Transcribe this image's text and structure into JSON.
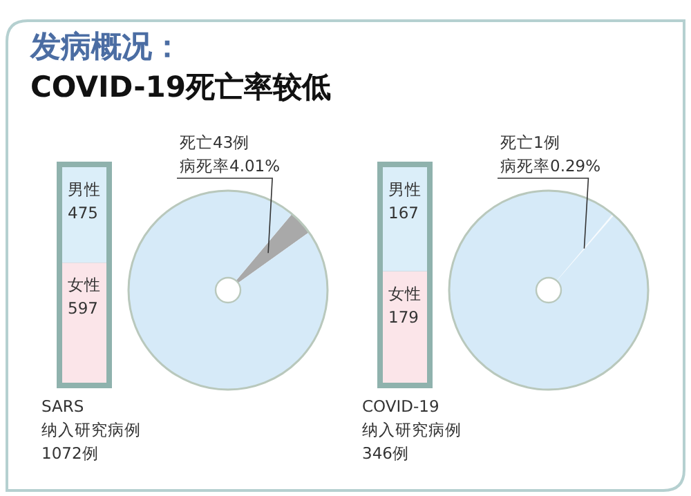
{
  "chart_data": [
    {
      "type": "bar",
      "title": "发病概况：",
      "subtitle": "COVID-19死亡率较低",
      "stacked": true,
      "categories": [
        null
      ],
      "data_labels": true,
      "series": [
        {
          "name": "女性",
          "color": "#fbe5e9",
          "values": [
            597
          ]
        },
        {
          "name": "男性",
          "color": "#dbeef9",
          "values": [
            475
          ]
        }
      ],
      "annotations": [
        "SARS",
        "纳入研究病例",
        "1072例"
      ]
    },
    {
      "type": "pie",
      "categories": [
        "死亡43例",
        null
      ],
      "values": [
        4.01,
        95.99
      ],
      "colors": [
        "#a9a9a9",
        "#d6eaf8"
      ],
      "value_labels": [
        "病死率4.01%",
        null
      ]
    },
    {
      "type": "bar",
      "stacked": true,
      "categories": [
        null
      ],
      "data_labels": true,
      "series": [
        {
          "name": "女性",
          "color": "#fbe5e9",
          "values": [
            179
          ]
        },
        {
          "name": "男性",
          "color": "#dbeef9",
          "values": [
            167
          ]
        }
      ],
      "annotations": [
        "COVID-19",
        "纳入研究病例",
        "346例"
      ]
    },
    {
      "type": "pie",
      "categories": [
        "死亡1例",
        null
      ],
      "values": [
        0.29,
        99.71
      ],
      "colors": [
        "#f7fbfe",
        "#d6eaf8"
      ],
      "value_labels": [
        "病死率0.29%",
        null
      ]
    }
  ]
}
